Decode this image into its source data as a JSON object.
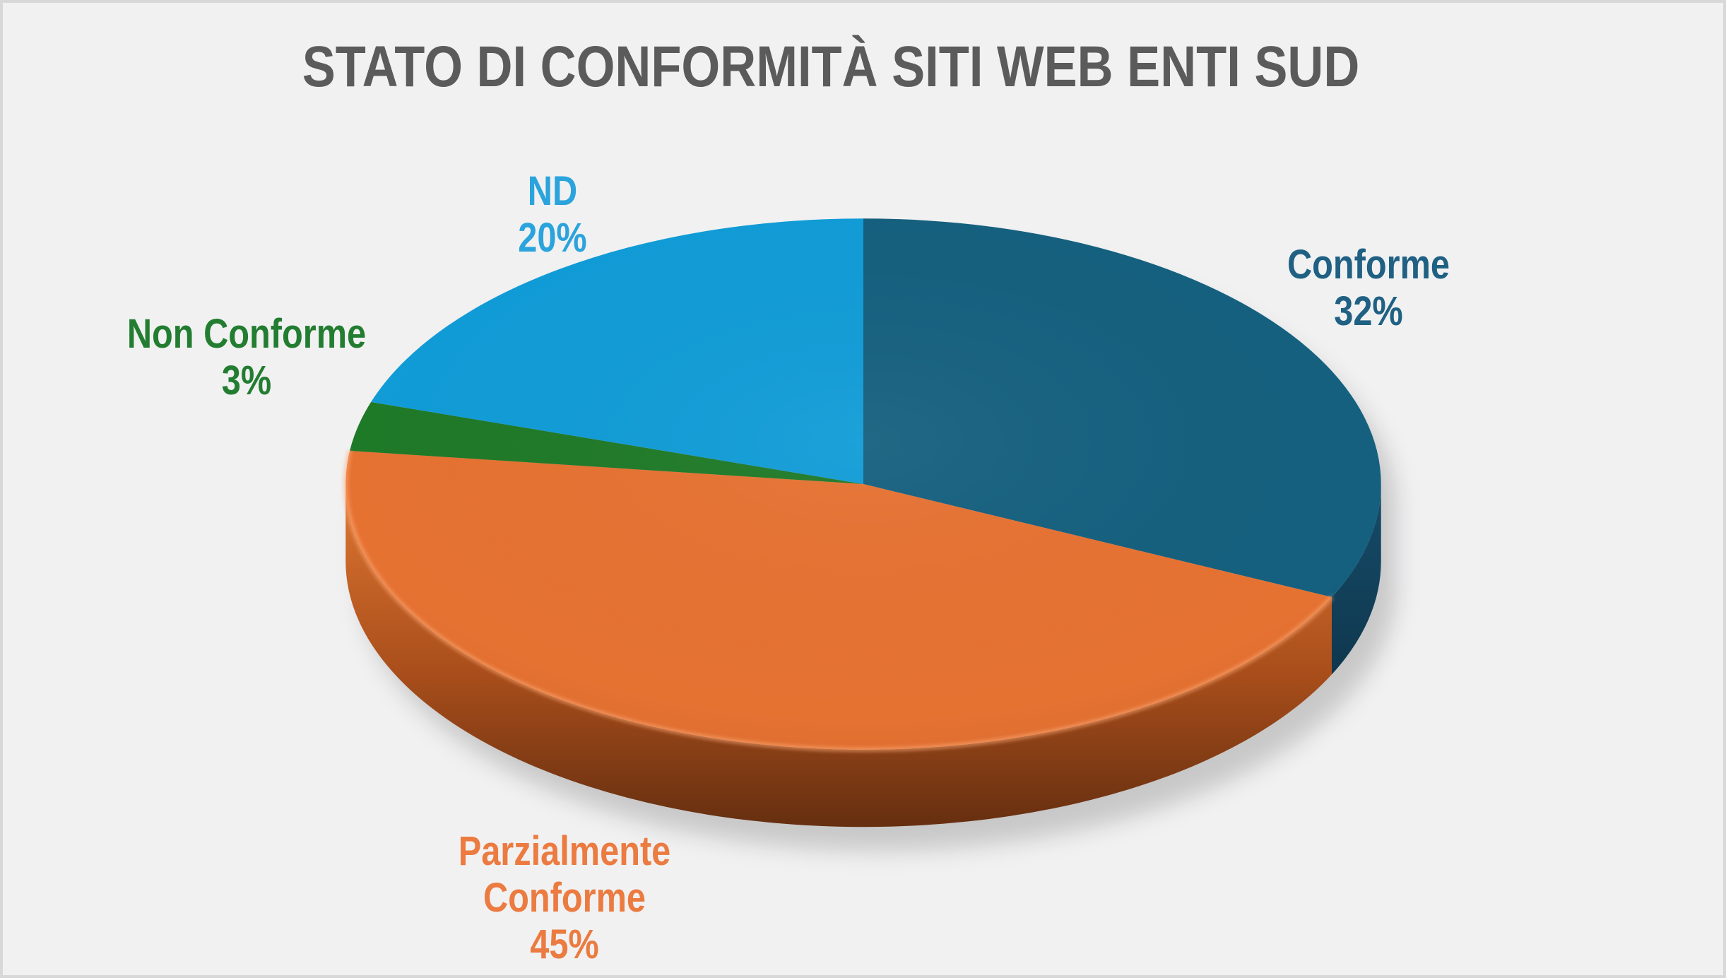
{
  "chart_data": {
    "type": "pie",
    "title": "STATO DI CONFORMITÀ SITI WEB ENTI SUD",
    "unit": "%",
    "effect": "3d",
    "direction": "clockwise",
    "start_angle_deg": 0,
    "legend": "none",
    "categories": [
      "Conforme",
      "Parzialmente Conforme",
      "Non Conforme",
      "ND"
    ],
    "values": [
      32,
      45,
      3,
      20
    ],
    "series": [
      {
        "label": "Conforme",
        "value": 32,
        "pct_label": "32%",
        "top_color": "#15607F",
        "side_color_top": "#164C69",
        "side_color_bottom": "#0F374E",
        "label_color": "#1F6083"
      },
      {
        "label": "Parzialmente Conforme",
        "value": 45,
        "pct_label": "45%",
        "top_color": "#E67232",
        "side_color_top": "#DF7733",
        "side_color_mid": "#A94E1B",
        "side_color_bottom": "#662F10",
        "label_color": "#EB7B40"
      },
      {
        "label": "Non Conforme",
        "value": 3,
        "pct_label": "3%",
        "top_color": "#1F7A28",
        "side_color_top": "#176020",
        "side_color_bottom": "#0F4016",
        "label_color": "#237D31"
      },
      {
        "label": "ND",
        "value": 20,
        "pct_label": "20%",
        "top_color": "#119CD7",
        "side_color_top": "#0F7FB0",
        "side_color_bottom": "#0A5578",
        "label_color": "#2BA3DC"
      }
    ]
  },
  "colors": {
    "background": "#F1F1F2",
    "frame_border": "#D8D8D8",
    "title": "#5B5B5B",
    "shadow": "rgba(0,0,0,0.17)",
    "rim_highlight": "#FFAB78"
  }
}
